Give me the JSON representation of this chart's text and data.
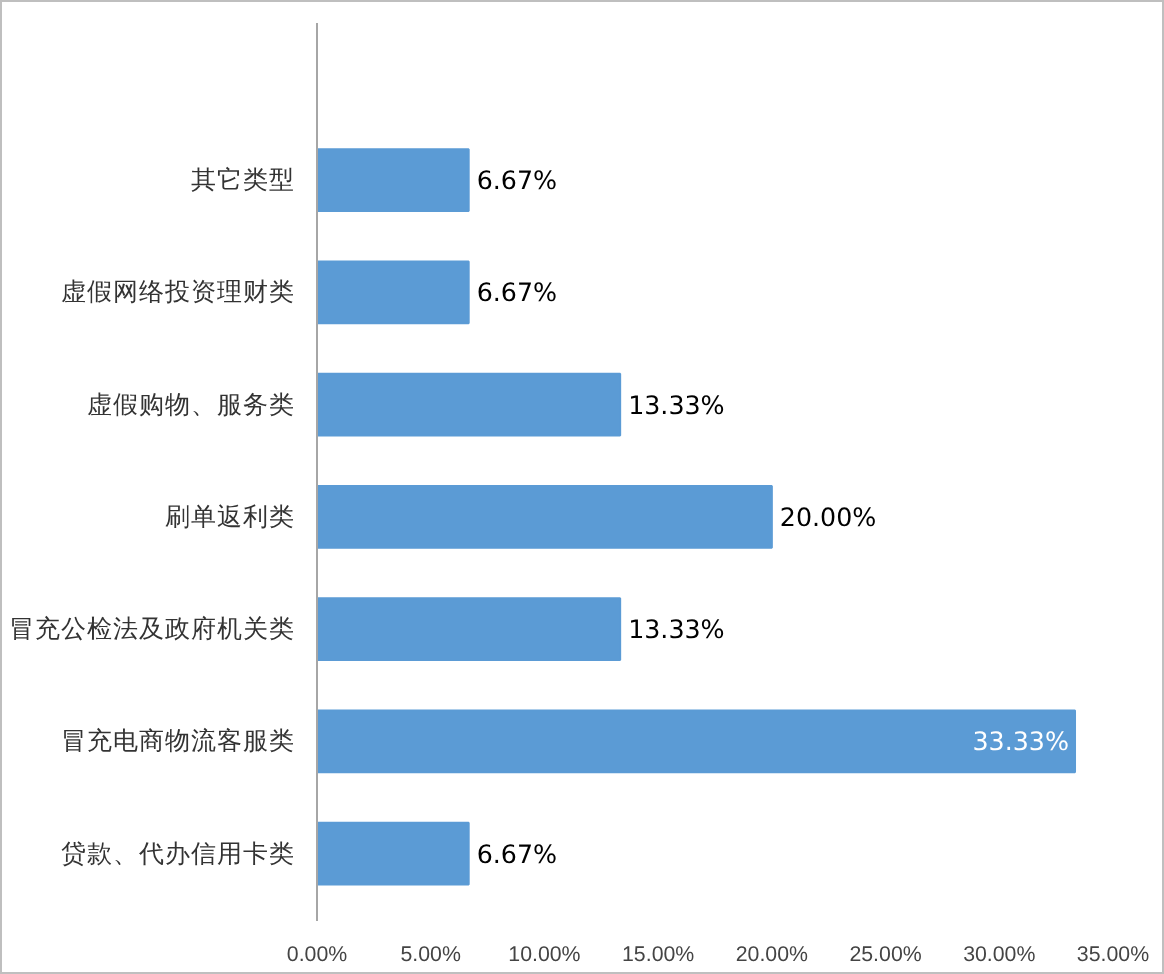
{
  "chart_data": {
    "type": "bar",
    "orientation": "horizontal",
    "categories": [
      "其它类型",
      "虚假网络投资理财类",
      "虚假购物、服务类",
      "刷单返利类",
      "冒充公检法及政府机关类",
      "冒充电商物流客服类",
      "贷款、代办信用卡类"
    ],
    "values": [
      6.67,
      6.67,
      13.33,
      20.0,
      13.33,
      33.33,
      6.67
    ],
    "value_labels": [
      "6.67%",
      "6.67%",
      "13.33%",
      "20.00%",
      "13.33%",
      "33.33%",
      "6.67%"
    ],
    "color": "#5b9bd5",
    "xlim": [
      0,
      35
    ],
    "xticks": [
      {
        "value": 0,
        "label": "0.00%"
      },
      {
        "value": 5,
        "label": "5.00%"
      },
      {
        "value": 10,
        "label": "10.00%"
      },
      {
        "value": 15,
        "label": "15.00%"
      },
      {
        "value": 20,
        "label": "20.00%"
      },
      {
        "value": 25,
        "label": "25.00%"
      },
      {
        "value": 30,
        "label": "30.00%"
      },
      {
        "value": 35,
        "label": "35.00%"
      }
    ],
    "grid": false
  }
}
